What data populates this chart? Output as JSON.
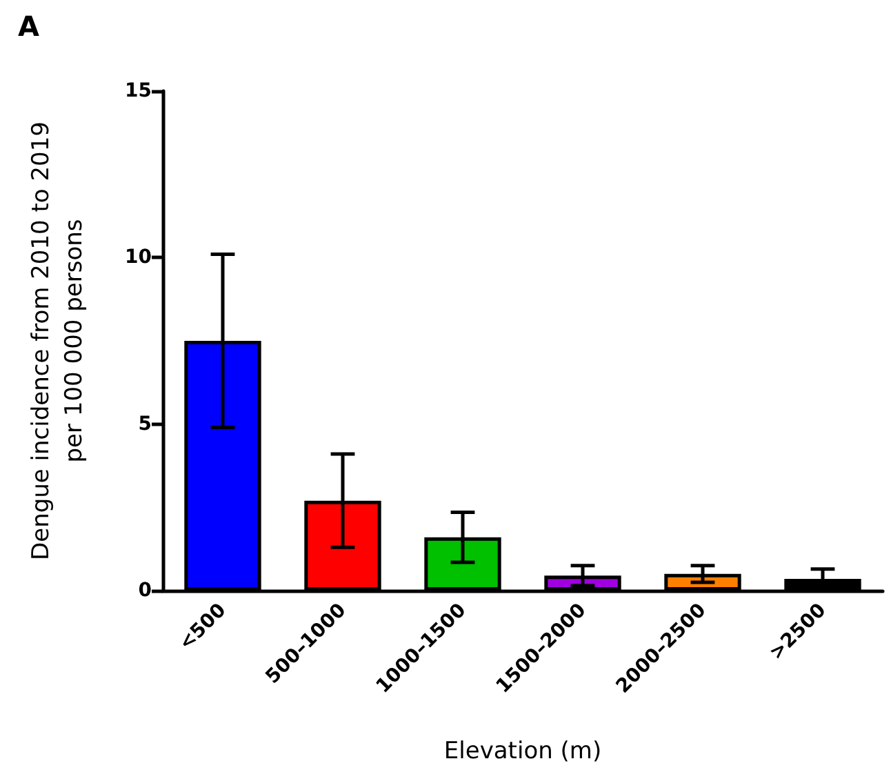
{
  "chart_data": {
    "type": "bar",
    "title": "A",
    "xlabel": "Elevation (m)",
    "ylabel": "Dengue incidence from 2010 to 2019\nper 100 000 persons",
    "categories": [
      "<500",
      "500–1000",
      "1000–1500",
      "1500–2000",
      "2000–2500",
      ">2500"
    ],
    "values": [
      7.5,
      2.7,
      1.6,
      0.45,
      0.5,
      0.35
    ],
    "colors": [
      "#0000ff",
      "#ff0000",
      "#00c000",
      "#a000e0",
      "#ff8000",
      "#000000"
    ],
    "errors": [
      2.6,
      1.4,
      0.75,
      0.3,
      0.25,
      0.3
    ],
    "ylim": [
      0,
      15
    ],
    "yticks": [
      0,
      5,
      10,
      15
    ],
    "grid": false
  }
}
